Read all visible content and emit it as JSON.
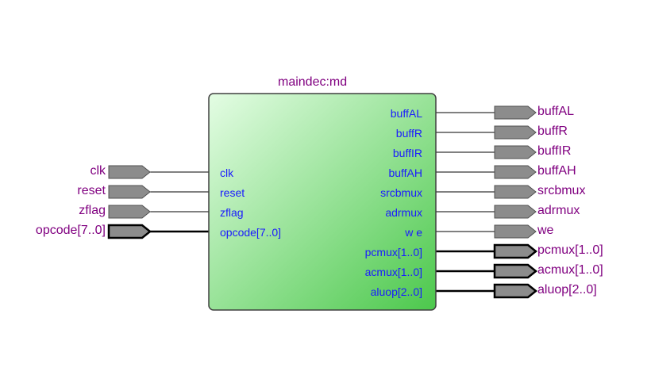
{
  "block": {
    "title": "maindec:md"
  },
  "inputs": [
    {
      "name": "clk",
      "port": "clk",
      "bus": false
    },
    {
      "name": "reset",
      "port": "reset",
      "bus": false
    },
    {
      "name": "zflag",
      "port": "zflag",
      "bus": false
    },
    {
      "name": "opcode[7..0]",
      "port": "opcode[7..0]",
      "bus": true
    }
  ],
  "outputs": [
    {
      "name": "buffAL",
      "port": "buffAL",
      "bus": false
    },
    {
      "name": "buffR",
      "port": "buffR",
      "bus": false
    },
    {
      "name": "buffIR",
      "port": "buffIR",
      "bus": false
    },
    {
      "name": "buffAH",
      "port": "buffAH",
      "bus": false
    },
    {
      "name": "srcbmux",
      "port": "srcbmux",
      "bus": false
    },
    {
      "name": "adrmux",
      "port": "adrmux",
      "bus": false
    },
    {
      "name": "we",
      "port": "w e",
      "bus": false
    },
    {
      "name": "pcmux[1..0]",
      "port": "pcmux[1..0]",
      "bus": true
    },
    {
      "name": "acmux[1..0]",
      "port": "acmux[1..0]",
      "bus": true
    },
    {
      "name": "aluop[2..0]",
      "port": "aluop[2..0]",
      "bus": true
    }
  ],
  "colors": {
    "pin_label": "#800080",
    "port_label": "#1a1aff",
    "block_fill_start": "#e4fde4",
    "block_fill_end": "#4cc84c",
    "pin_fill": "#8c8c8c"
  }
}
